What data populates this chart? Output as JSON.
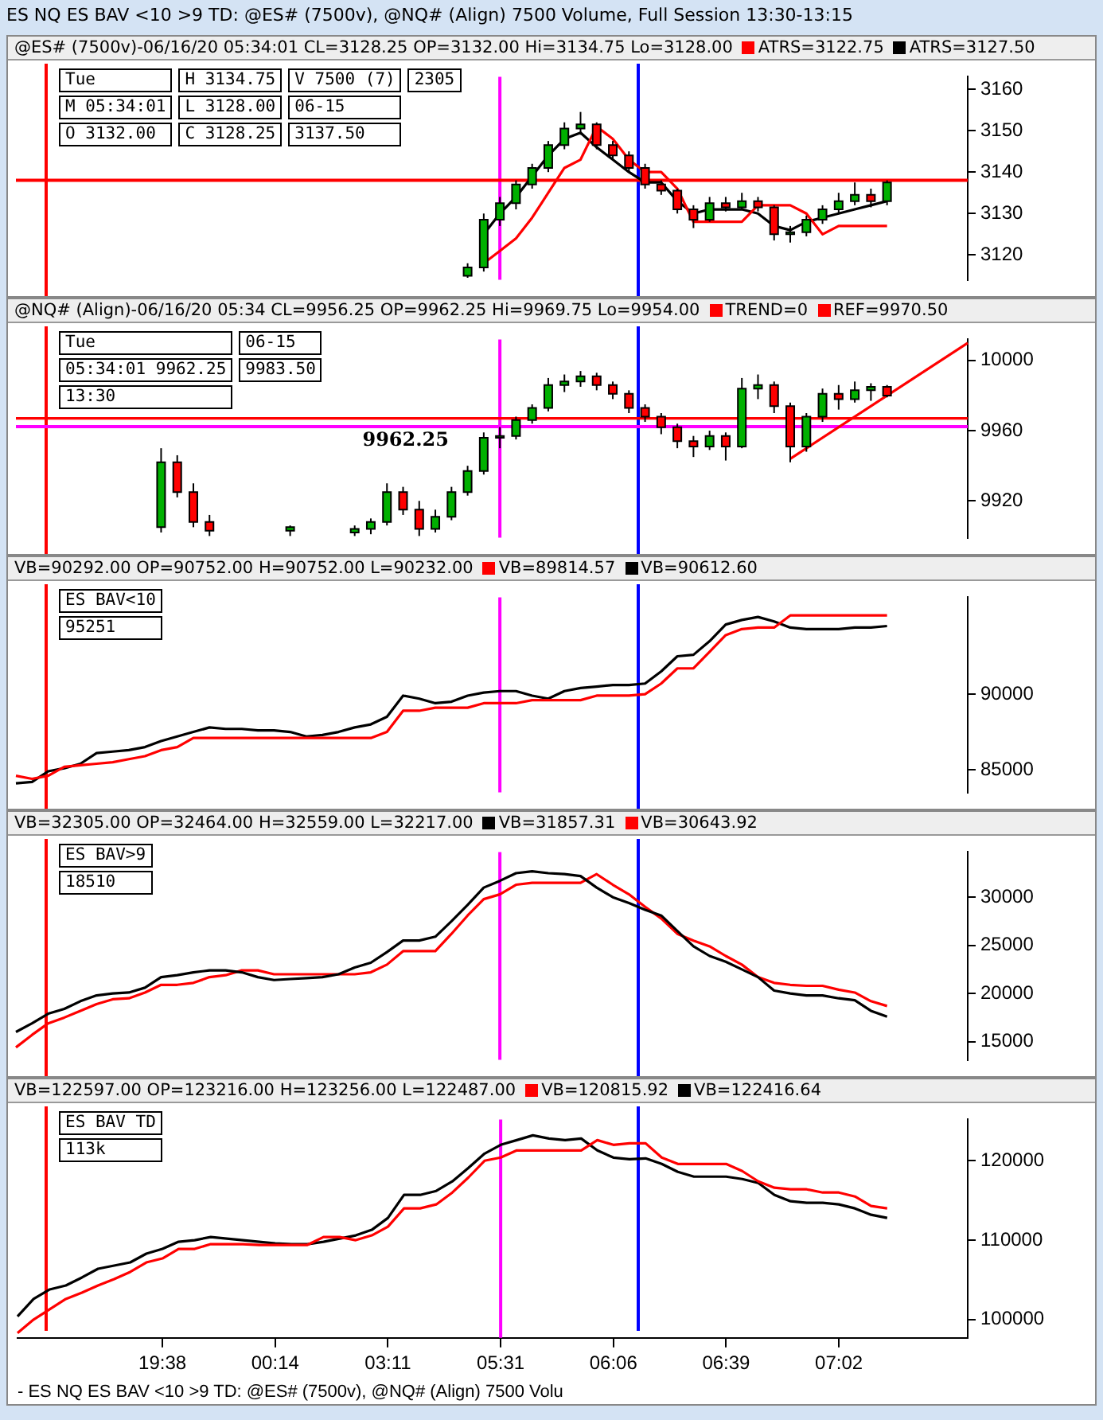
{
  "chart_data": [
    {
      "type": "candlestick",
      "title": "ES NQ ES BAV <10 >9 TD: @ES# (7500v), @NQ# (Align) 7500 Volume, Full Session 13:30-13:15",
      "subtitle": "@ES# (7500v)-06/16/20 05:34:01 CL=3128.25 OP=3132.00 Hi=3134.75 Lo=3128.00",
      "legend": "top right",
      "tick_labels": "y",
      "ylim": [
        3114,
        3163
      ],
      "yticks": [
        3120,
        3130,
        3140,
        3150,
        3160
      ],
      "categories": [
        null,
        null,
        null,
        null,
        null,
        null,
        null,
        null,
        null,
        "19:38",
        null,
        null,
        null,
        null,
        null,
        null,
        "00:14",
        null,
        null,
        null,
        null,
        null,
        null,
        "03:11",
        null,
        null,
        null,
        null,
        null,
        null,
        "05:31",
        null,
        null,
        null,
        null,
        null,
        null,
        "06:06",
        null,
        null,
        null,
        null,
        null,
        null,
        "06:39",
        null,
        null,
        null,
        null,
        null,
        null,
        "07:02",
        null,
        null,
        null,
        null,
        null,
        null,
        null,
        null
      ],
      "ohlc": [
        null,
        null,
        null,
        null,
        null,
        null,
        null,
        null,
        null,
        null,
        null,
        null,
        null,
        null,
        null,
        null,
        null,
        null,
        null,
        null,
        null,
        null,
        null,
        null,
        null,
        null,
        null,
        null,
        [
          3115,
          3118,
          3114.5,
          3117
        ],
        [
          3117,
          3130,
          3116,
          3128.5
        ],
        [
          3128.5,
          3134,
          3127,
          3132.5
        ],
        [
          3132.5,
          3138,
          3131,
          3137
        ],
        [
          3137,
          3142,
          3136,
          3141
        ],
        [
          3141,
          3147.5,
          3140,
          3146.5
        ],
        [
          3146.5,
          3152,
          3145.5,
          3150.5
        ],
        [
          3150.5,
          3154.5,
          3149,
          3151.5
        ],
        [
          3151.5,
          3152,
          3145.5,
          3146.5
        ],
        [
          3146.5,
          3147.5,
          3143,
          3144
        ],
        [
          3144,
          3145,
          3140,
          3141
        ],
        [
          3141,
          3142,
          3136,
          3137
        ],
        [
          3137,
          3138,
          3134.5,
          3135.5
        ],
        [
          3135.5,
          3136,
          3130,
          3131
        ],
        [
          3131,
          3132,
          3126.5,
          3128.5
        ],
        [
          3128.5,
          3134,
          3128,
          3132.5
        ],
        [
          3132.5,
          3134,
          3130.5,
          3131.5
        ],
        [
          3131.5,
          3135,
          3131,
          3133
        ],
        [
          3133,
          3134,
          3130.5,
          3131.5
        ],
        [
          3131.5,
          3132,
          3123.5,
          3125
        ],
        [
          3125,
          3127,
          3123,
          3125.5
        ],
        [
          3125.5,
          3129.5,
          3124.5,
          3128.5
        ],
        [
          3128.5,
          3132,
          3127.5,
          3131
        ],
        [
          3131,
          3135,
          3130,
          3133
        ],
        [
          3133,
          3137.5,
          3132,
          3134.5
        ],
        [
          3134.5,
          3136,
          3131.5,
          3133
        ],
        [
          3133,
          3138,
          3132,
          3137.5
        ],
        null,
        null,
        null,
        null,
        null
      ],
      "series": [
        {
          "type": "line",
          "name": "ATRS=3122.75",
          "color": "#ff0000",
          "values": [
            null,
            null,
            null,
            null,
            null,
            null,
            null,
            null,
            null,
            null,
            null,
            null,
            null,
            null,
            null,
            null,
            null,
            null,
            null,
            null,
            null,
            null,
            null,
            null,
            null,
            null,
            null,
            null,
            null,
            3118,
            3121,
            3124,
            3129,
            3135,
            3141,
            3143,
            3151,
            3148,
            3143,
            3140,
            3140,
            3136,
            3128,
            3128,
            3128,
            3128,
            3132,
            3132,
            3132,
            3130,
            3125,
            3127,
            3127,
            3127,
            3127,
            null,
            null,
            null,
            null,
            null
          ]
        },
        {
          "type": "line",
          "name": "ATRS=3127.50",
          "color": "#000000",
          "values": [
            null,
            null,
            null,
            null,
            null,
            null,
            null,
            null,
            null,
            null,
            null,
            null,
            null,
            null,
            null,
            null,
            null,
            null,
            null,
            null,
            null,
            null,
            null,
            null,
            null,
            null,
            null,
            null,
            null,
            3125,
            3130,
            3134,
            3139,
            3144,
            3148,
            3149.5,
            3146,
            3143,
            3140,
            3137.5,
            3137.5,
            3133,
            3130,
            3131,
            3131,
            3131,
            3130,
            3127,
            3126,
            3128,
            3129,
            3130,
            3131,
            3132,
            3133,
            null,
            null,
            null,
            null,
            null
          ]
        }
      ],
      "ref_lines": [
        {
          "axis": "x",
          "value": "05:31",
          "color": "#ff00ff"
        },
        {
          "axis": "y",
          "value": 3138,
          "color": "#ff0000"
        }
      ],
      "annotations": [
        "Tue",
        "M 05:34:01",
        "O 3132.00",
        "H 3134.75",
        "L 3128.00",
        "C 3128.25",
        "V 7500 (7)",
        "06-15",
        "3137.50",
        "2305"
      ]
    },
    {
      "type": "candlestick",
      "subtitle": "@NQ# (Align)-06/16/20 05:34 CL=9956.25 OP=9962.25 Hi=9969.75 Lo=9954.00",
      "legend": "top right",
      "tick_labels": "y",
      "ylim": [
        9899,
        10012
      ],
      "yticks": [
        9920,
        9960,
        10000
      ],
      "categories": [
        null,
        null,
        null,
        null,
        null,
        null,
        null,
        null,
        null,
        "19:38",
        null,
        null,
        null,
        null,
        null,
        null,
        "00:14",
        null,
        null,
        null,
        null,
        null,
        null,
        "03:11",
        null,
        null,
        null,
        null,
        null,
        null,
        "05:31",
        null,
        null,
        null,
        null,
        null,
        null,
        "06:06",
        null,
        null,
        null,
        null,
        null,
        null,
        "06:39",
        null,
        null,
        null,
        null,
        null,
        null,
        "07:02",
        null,
        null,
        null,
        null,
        null,
        null,
        null,
        null
      ],
      "ohlc": [
        null,
        null,
        null,
        null,
        null,
        null,
        null,
        null,
        null,
        [
          9905,
          9950,
          9902,
          9942
        ],
        [
          9942,
          9946,
          9922,
          9925
        ],
        [
          9925,
          9930,
          9905,
          9908
        ],
        [
          9908,
          9912,
          9900,
          9903
        ],
        null,
        null,
        null,
        null,
        [
          9903,
          9906,
          9900,
          9905
        ],
        null,
        null,
        null,
        [
          9902,
          9906,
          9900,
          9904
        ],
        [
          9904,
          9910,
          9901,
          9908
        ],
        [
          9908,
          9930,
          9906,
          9925
        ],
        [
          9925,
          9928,
          9912,
          9915
        ],
        [
          9915,
          9920,
          9900,
          9904
        ],
        [
          9904,
          9915,
          9902,
          9911
        ],
        [
          9911,
          9928,
          9909,
          9925
        ],
        [
          9925,
          9940,
          9923,
          9937
        ],
        [
          9937,
          9959,
          9935,
          9956
        ],
        [
          9956,
          9962,
          9950,
          9957
        ],
        [
          9957,
          9968,
          9955,
          9966
        ],
        [
          9966,
          9975,
          9964,
          9973
        ],
        [
          9973,
          9990,
          9971,
          9986
        ],
        [
          9986,
          9992,
          9982,
          9988
        ],
        [
          9988,
          9994,
          9985,
          9991
        ],
        [
          9991,
          9993,
          9983,
          9986
        ],
        [
          9986,
          9988,
          9978,
          9981
        ],
        [
          9981,
          9983,
          9970,
          9973
        ],
        [
          9973,
          9975,
          9965,
          9968
        ],
        [
          9968,
          9970,
          9958,
          9962
        ],
        [
          9962,
          9964,
          9950,
          9954
        ],
        [
          9954,
          9957,
          9945,
          9951
        ],
        [
          9951,
          9960,
          9949,
          9957
        ],
        [
          9957,
          9959,
          9943,
          9951
        ],
        [
          9951,
          9990,
          9950,
          9984
        ],
        [
          9984,
          9992,
          9978,
          9986
        ],
        [
          9986,
          9988,
          9970,
          9974
        ],
        [
          9974,
          9976,
          9942,
          9951
        ],
        [
          9951,
          9970,
          9948,
          9968
        ],
        [
          9968,
          9984,
          9965,
          9981
        ],
        [
          9981,
          9986,
          9972,
          9978
        ],
        [
          9978,
          9988,
          9976,
          9983
        ],
        [
          9983,
          9987,
          9977,
          9985
        ],
        [
          9985,
          9986,
          9979,
          9980
        ],
        null,
        null,
        null,
        null,
        null
      ],
      "series": [
        {
          "type": "line",
          "name": "TREND=0",
          "color": "#ff0000",
          "values": [
            null,
            null,
            null,
            null,
            null,
            null,
            null,
            null,
            null,
            null,
            null,
            null,
            null,
            null,
            null,
            null,
            null,
            null,
            null,
            null,
            null,
            null,
            null,
            null,
            null,
            null,
            null,
            null,
            null,
            null,
            null,
            null,
            null,
            null,
            null,
            null,
            null,
            null,
            null,
            null,
            null,
            null,
            null,
            null,
            null,
            null,
            null,
            null,
            9944,
            null,
            null,
            null,
            null,
            null,
            null,
            null,
            null,
            null,
            null,
            10010
          ]
        },
        {
          "type": "line",
          "name": "REF=9970.50",
          "color": "#ff0000",
          "values": [
            9967,
            null,
            null,
            null,
            null,
            null,
            null,
            null,
            null,
            null,
            null,
            null,
            null,
            null,
            null,
            null,
            null,
            null,
            null,
            null,
            null,
            null,
            null,
            null,
            null,
            null,
            null,
            null,
            null,
            null,
            null,
            null,
            null,
            null,
            null,
            null,
            null,
            null,
            null,
            null,
            null,
            null,
            null,
            null,
            null,
            null,
            null,
            null,
            null,
            null,
            null,
            null,
            null,
            null,
            null,
            null,
            null,
            null,
            null,
            9967
          ]
        }
      ],
      "ref_lines": [
        {
          "axis": "x",
          "value": "05:31",
          "color": "#ff00ff"
        },
        {
          "axis": "y",
          "value": 9962.25,
          "color": "#ff00ff",
          "label": "9962.25"
        }
      ],
      "annotations": [
        "Tue",
        "05:34:01  9962.25",
        "13:30",
        "06-15",
        "9983.50"
      ]
    },
    {
      "type": "line",
      "subtitle": "VB=90292.00 OP=90752.00 H=90752.00 L=90232.00",
      "legend": "top right",
      "tick_labels": "y",
      "ylim": [
        83500,
        96400
      ],
      "yticks": [
        85000,
        90000
      ],
      "categories": [
        null,
        null,
        null,
        null,
        null,
        null,
        null,
        null,
        null,
        "19:38",
        null,
        null,
        null,
        null,
        null,
        null,
        "00:14",
        null,
        null,
        null,
        null,
        null,
        null,
        "03:11",
        null,
        null,
        null,
        null,
        null,
        null,
        "05:31",
        null,
        null,
        null,
        null,
        null,
        null,
        "06:06",
        null,
        null,
        null,
        null,
        null,
        null,
        "06:39",
        null,
        null,
        null,
        null,
        null,
        null,
        "07:02",
        null,
        null,
        null,
        null,
        null,
        null,
        null,
        null
      ],
      "series": [
        {
          "name": "VB=89814.57",
          "color": "#ff0000",
          "values": [
            84600,
            84400,
            84600,
            85200,
            85300,
            85400,
            85500,
            85700,
            85900,
            86300,
            86500,
            87100,
            87100,
            87100,
            87100,
            87100,
            87100,
            87100,
            87100,
            87100,
            87100,
            87100,
            87100,
            87500,
            88900,
            88900,
            89100,
            89100,
            89100,
            89400,
            89400,
            89400,
            89600,
            89600,
            89600,
            89600,
            89900,
            89900,
            89900,
            90000,
            90700,
            91700,
            91700,
            92800,
            93900,
            94300,
            94400,
            94400,
            95200,
            95200,
            95200,
            95200,
            95200,
            95200,
            95200,
            null,
            null,
            null,
            null,
            null
          ]
        },
        {
          "name": "VB=90612.60",
          "color": "#000000",
          "values": [
            84100,
            84200,
            84900,
            85100,
            85400,
            86100,
            86200,
            86300,
            86500,
            86900,
            87200,
            87500,
            87800,
            87700,
            87700,
            87600,
            87600,
            87500,
            87200,
            87300,
            87500,
            87800,
            88000,
            88500,
            89900,
            89700,
            89400,
            89500,
            89900,
            90100,
            90200,
            90200,
            89900,
            89700,
            90200,
            90400,
            90500,
            90600,
            90600,
            90700,
            91500,
            92500,
            92600,
            93500,
            94600,
            94900,
            95100,
            94800,
            94400,
            94300,
            94300,
            94300,
            94400,
            94400,
            94500,
            null,
            null,
            null,
            null,
            null
          ]
        }
      ],
      "ref_lines": [
        {
          "axis": "x",
          "value": "05:31",
          "color": "#ff00ff"
        }
      ],
      "annotations": [
        "ES BAV<10",
        "95251"
      ]
    },
    {
      "type": "line",
      "subtitle": "VB=32305.00 OP=32464.00 H=32559.00 L=32217.00",
      "legend": "top right",
      "tick_labels": "y",
      "ylim": [
        13100,
        34700
      ],
      "yticks": [
        15000,
        20000,
        25000,
        30000
      ],
      "categories": [
        null,
        null,
        null,
        null,
        null,
        null,
        null,
        null,
        null,
        "19:38",
        null,
        null,
        null,
        null,
        null,
        null,
        "00:14",
        null,
        null,
        null,
        null,
        null,
        null,
        "03:11",
        null,
        null,
        null,
        null,
        null,
        null,
        "05:31",
        null,
        null,
        null,
        null,
        null,
        null,
        "06:06",
        null,
        null,
        null,
        null,
        null,
        null,
        "06:39",
        null,
        null,
        null,
        null,
        null,
        null,
        "07:02",
        null,
        null,
        null,
        null,
        null,
        null,
        null,
        null
      ],
      "series": [
        {
          "name": "VB=31857.31",
          "color": "#000000",
          "values": [
            16000,
            16900,
            17900,
            18400,
            19200,
            19800,
            20000,
            20100,
            20600,
            21700,
            21900,
            22200,
            22400,
            22400,
            22200,
            21700,
            21400,
            21500,
            21600,
            21700,
            22000,
            22700,
            23200,
            24300,
            25500,
            25500,
            25900,
            27500,
            29200,
            31000,
            31700,
            32500,
            32700,
            32500,
            32400,
            32200,
            31000,
            30000,
            29400,
            28700,
            28100,
            26500,
            24900,
            23900,
            23300,
            22500,
            21700,
            20300,
            20000,
            19800,
            19800,
            19500,
            19300,
            18200,
            17600,
            null,
            null,
            null,
            null,
            null
          ]
        },
        {
          "name": "VB=30643.92",
          "color": "#ff0000",
          "values": [
            14400,
            15700,
            16900,
            17500,
            18200,
            18900,
            19400,
            19500,
            20100,
            20900,
            20900,
            21100,
            21700,
            21900,
            22400,
            22400,
            22000,
            22000,
            22000,
            22000,
            22000,
            22000,
            22200,
            23000,
            24400,
            24400,
            24400,
            26200,
            28100,
            29800,
            30300,
            31300,
            31500,
            31500,
            31500,
            31500,
            32400,
            31300,
            30300,
            29000,
            27800,
            26200,
            25500,
            24900,
            23900,
            23000,
            21700,
            21100,
            20900,
            20800,
            20800,
            20400,
            20100,
            19200,
            18700,
            null,
            null,
            null,
            null,
            null
          ]
        }
      ],
      "ref_lines": [
        {
          "axis": "x",
          "value": "05:31",
          "color": "#ff00ff"
        }
      ],
      "annotations": [
        "ES BAV>9",
        "18510"
      ]
    },
    {
      "type": "line",
      "subtitle": "VB=122597.00 OP=123216.00 H=123256.00 L=122487.00",
      "legend": "top right",
      "xlabel": "- ES NQ ES BAV <10 >9 TD: @ES# (7500v), @NQ# (Align) 7500 Volu",
      "ylim": [
        97700,
        125200
      ],
      "yticks": [
        100000,
        110000,
        120000
      ],
      "categories": [
        null,
        null,
        null,
        null,
        null,
        null,
        null,
        null,
        null,
        "19:38",
        null,
        null,
        null,
        null,
        null,
        null,
        "00:14",
        null,
        null,
        null,
        null,
        null,
        null,
        "03:11",
        null,
        null,
        null,
        null,
        null,
        null,
        "05:31",
        null,
        null,
        null,
        null,
        null,
        null,
        "06:06",
        null,
        null,
        null,
        null,
        null,
        null,
        "06:39",
        null,
        null,
        null,
        null,
        null,
        null,
        "07:02",
        null,
        null,
        null,
        null,
        null,
        null,
        null,
        null
      ],
      "series": [
        {
          "name": "VB=120815.92",
          "color": "#ff0000",
          "values": [
            98300,
            100000,
            101300,
            102600,
            103400,
            104300,
            105100,
            106000,
            107200,
            107700,
            108900,
            108900,
            109500,
            109500,
            109500,
            109400,
            109400,
            109400,
            109400,
            110400,
            110400,
            110000,
            110600,
            111700,
            114000,
            114000,
            114500,
            116000,
            117900,
            120000,
            120400,
            121300,
            121300,
            121300,
            121300,
            121300,
            122600,
            122000,
            122200,
            122200,
            120400,
            119600,
            119600,
            119600,
            119600,
            118700,
            117400,
            116600,
            116400,
            116400,
            116000,
            116000,
            115500,
            114300,
            114000,
            null,
            null,
            null,
            null,
            null
          ]
        },
        {
          "name": "VB=122416.64",
          "color": "#000000",
          "values": [
            100400,
            102600,
            103800,
            104300,
            105300,
            106400,
            106800,
            107200,
            108300,
            108900,
            109800,
            110000,
            110400,
            110200,
            110000,
            109800,
            109600,
            109500,
            109500,
            109800,
            110200,
            110600,
            111300,
            112800,
            115700,
            115700,
            116200,
            117400,
            119100,
            120900,
            122000,
            122600,
            123200,
            122800,
            122600,
            122800,
            121300,
            120400,
            120200,
            120300,
            119600,
            118600,
            118000,
            118000,
            118000,
            117700,
            117200,
            115700,
            114900,
            114700,
            114700,
            114500,
            114000,
            113200,
            112800,
            null,
            null,
            null,
            null,
            null
          ]
        }
      ],
      "ref_lines": [
        {
          "axis": "x",
          "value": "05:31",
          "color": "#ff00ff"
        }
      ],
      "annotations": [
        "ES BAV TD",
        "113k"
      ]
    }
  ]
}
